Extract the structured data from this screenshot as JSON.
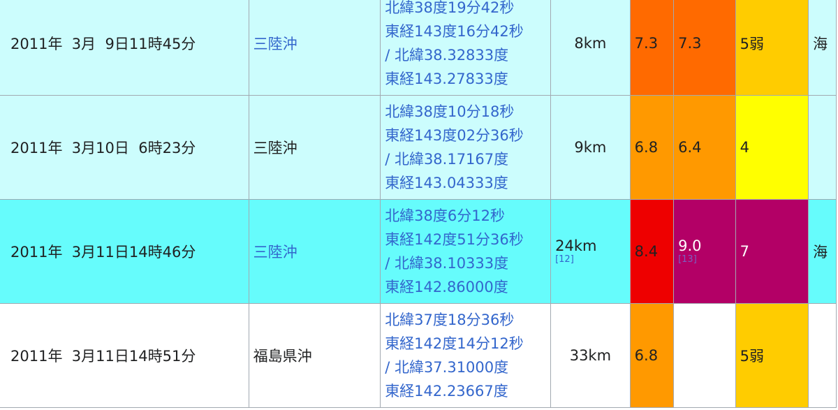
{
  "colors": {
    "row_light": "#ccfdfd",
    "row_main": "#66fcfc",
    "mag_7_3": "#ff6a00",
    "mag_6_8": "#ff9900",
    "mag_8_4": "#ee0000",
    "mag_9_0": "#b30066",
    "int_5weak": "#ffcc00",
    "int_4": "#ffff00",
    "int_7": "#b30066",
    "link": "#3366cc"
  },
  "rows": [
    {
      "date": "2011年  3月  9日11時45分",
      "region": "三陸沖",
      "region_link": true,
      "coord": [
        "北緯38度19分42秒",
        "東経143度16分42秒",
        "/ 北緯38.32833度",
        "東経143.27833度"
      ],
      "depth": "8km",
      "depth_ref": "",
      "mj": "7.3",
      "mw": "7.3",
      "mw_ref": "",
      "intensity": "5弱",
      "more": "海",
      "bg": "#ccfdfd",
      "mj_bg": "#ff6a00",
      "mw_bg": "#ff6a00",
      "int_bg": "#ffcc00"
    },
    {
      "date": "2011年  3月10日  6時23分",
      "region": "三陸沖",
      "region_link": false,
      "coord": [
        "北緯38度10分18秒",
        "東経143度02分36秒",
        "/ 北緯38.17167度",
        "東経143.04333度"
      ],
      "depth": "9km",
      "depth_ref": "",
      "mj": "6.8",
      "mw": "6.4",
      "mw_ref": "",
      "intensity": "4",
      "more": "",
      "bg": "#ccfdfd",
      "mj_bg": "#ff9900",
      "mw_bg": "#ff9900",
      "int_bg": "#ffff00"
    },
    {
      "date": "2011年  3月11日14時46分",
      "region": "三陸沖",
      "region_link": true,
      "coord": [
        "北緯38度6分12秒",
        "東経142度51分36秒",
        "/ 北緯38.10333度",
        "東経142.86000度"
      ],
      "depth": "24km",
      "depth_ref": "[12]",
      "mj": "8.4",
      "mw": "9.0",
      "mw_ref": "[13]",
      "intensity": "7",
      "more": "海",
      "bg": "#66fcfc",
      "mj_bg": "#ee0000",
      "mw_bg": "#b30066",
      "int_bg": "#b30066"
    },
    {
      "date": "2011年  3月11日14時51分",
      "region": "福島県沖",
      "region_link": false,
      "coord": [
        "北緯37度18分36秒",
        "東経142度14分12秒",
        "/ 北緯37.31000度",
        "東経142.23667度"
      ],
      "depth": "33km",
      "depth_ref": "",
      "mj": "6.8",
      "mw": "",
      "mw_ref": "",
      "intensity": "5弱",
      "more": "",
      "bg": "#ffffff",
      "mj_bg": "#ff9900",
      "mw_bg": "#ffffff",
      "int_bg": "#ffcc00"
    }
  ]
}
